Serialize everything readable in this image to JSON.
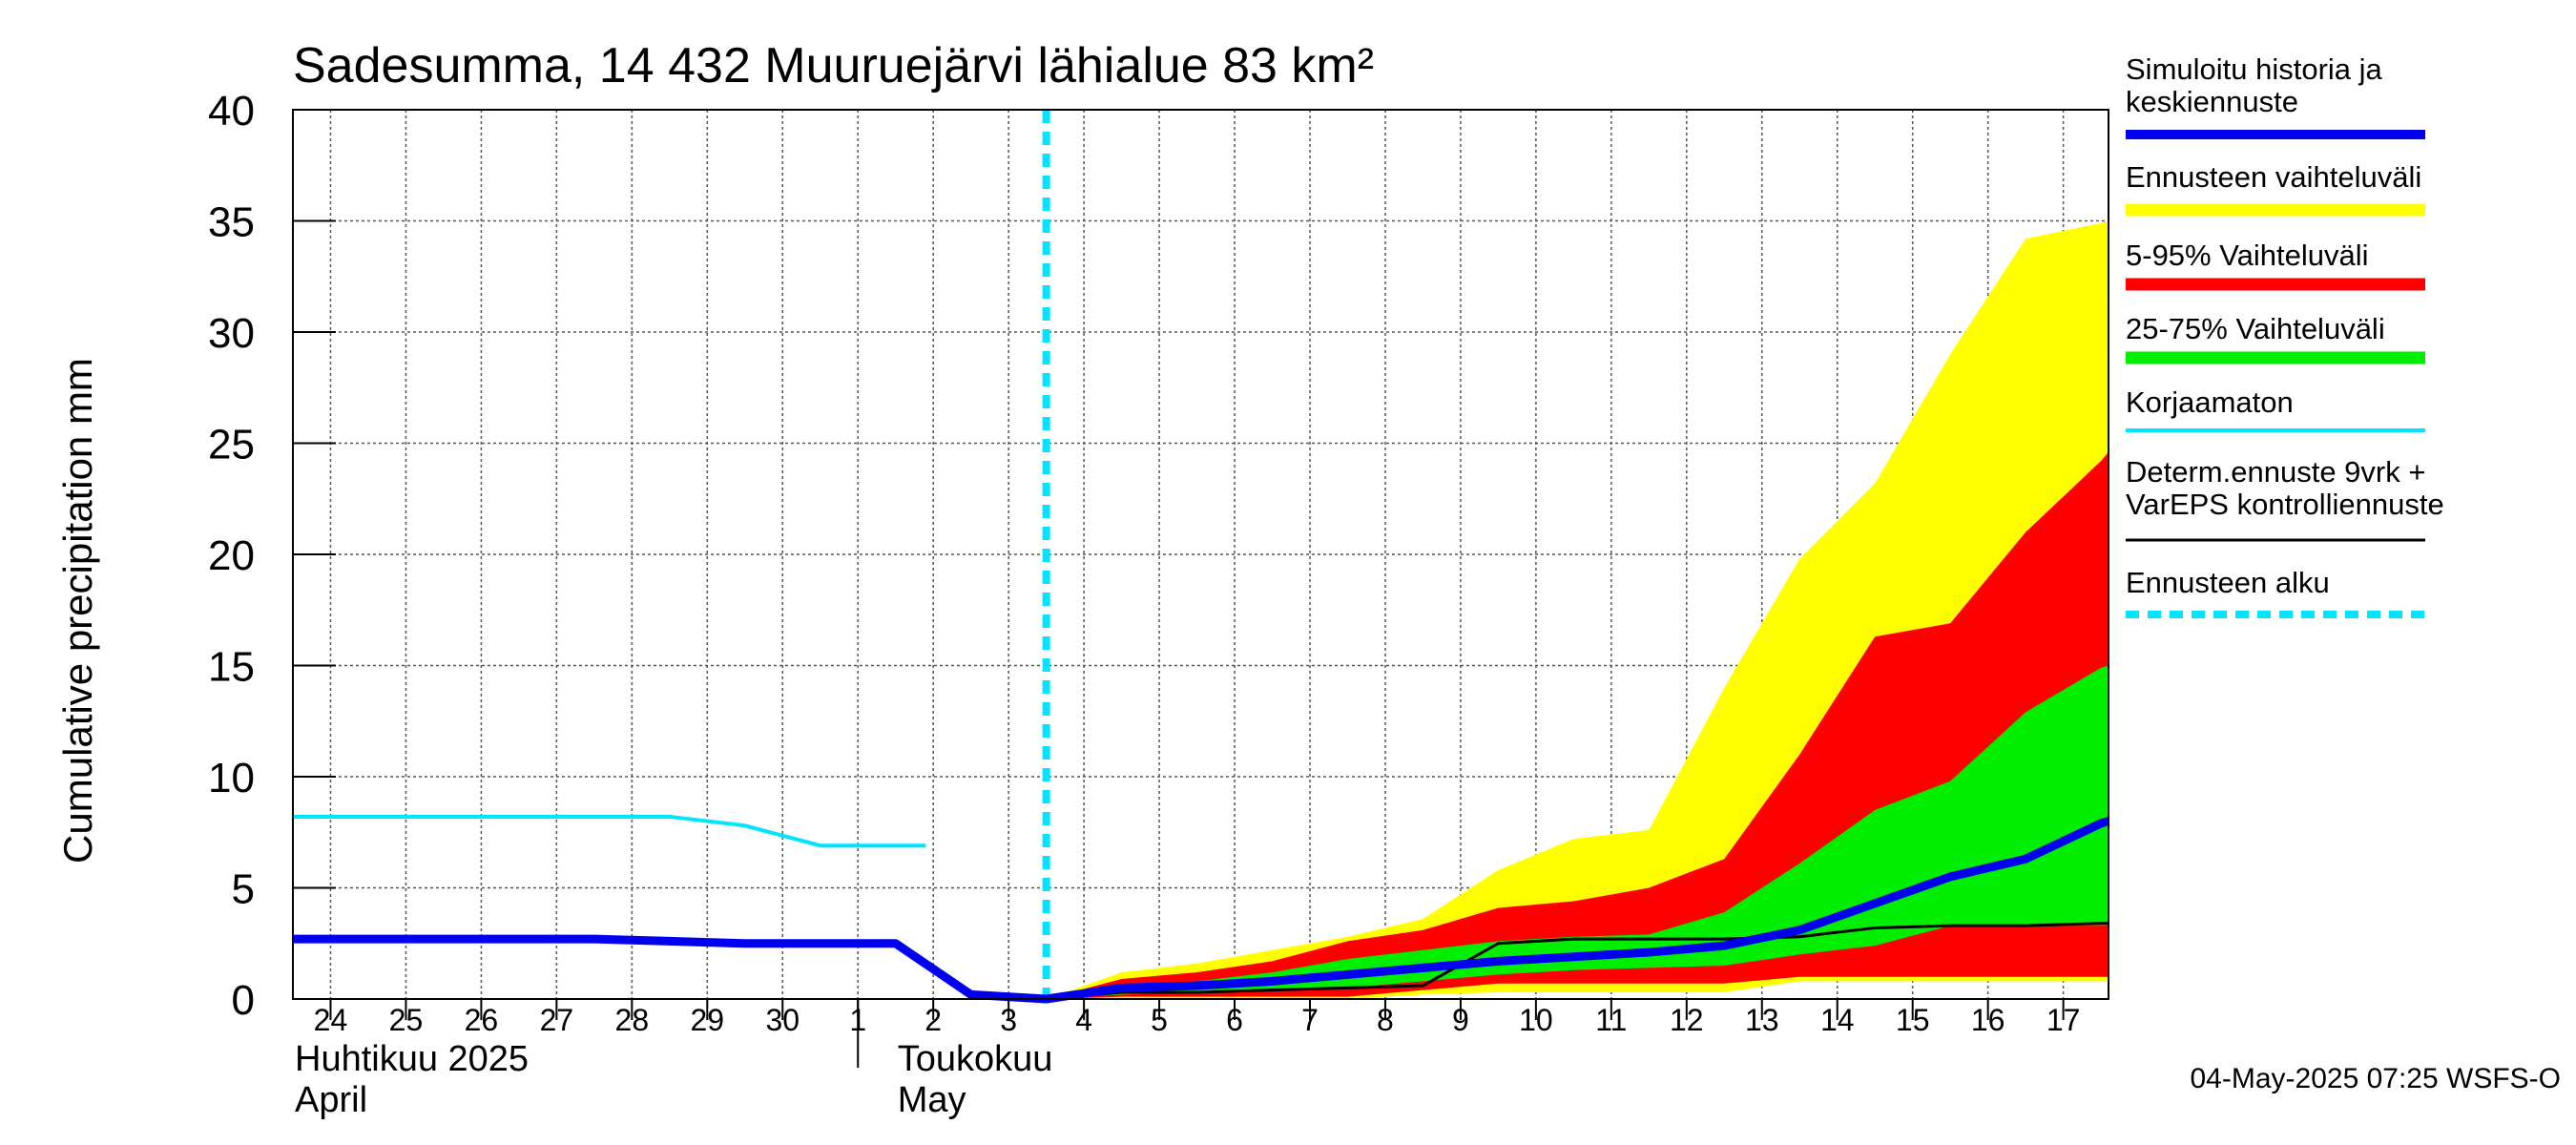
{
  "chart_data": {
    "type": "area",
    "title": "Sadesumma, 14 432 Muuruejärvi lähialue 83 km²",
    "ylabel": "Cumulative precipitation   mm",
    "ylim": [
      0,
      40
    ],
    "yticks": [
      0,
      5,
      10,
      15,
      20,
      25,
      30,
      35,
      40
    ],
    "day_range": [
      -0.5,
      23.6
    ],
    "day_labels": [
      {
        "label": "24",
        "d": 0
      },
      {
        "label": "25",
        "d": 1
      },
      {
        "label": "26",
        "d": 2
      },
      {
        "label": "27",
        "d": 3
      },
      {
        "label": "28",
        "d": 4
      },
      {
        "label": "29",
        "d": 5
      },
      {
        "label": "30",
        "d": 6
      },
      {
        "label": "1",
        "d": 7
      },
      {
        "label": "2",
        "d": 8
      },
      {
        "label": "3",
        "d": 9
      },
      {
        "label": "4",
        "d": 10
      },
      {
        "label": "5",
        "d": 11
      },
      {
        "label": "6",
        "d": 12
      },
      {
        "label": "7",
        "d": 13
      },
      {
        "label": "8",
        "d": 14
      },
      {
        "label": "9",
        "d": 15
      },
      {
        "label": "10",
        "d": 16
      },
      {
        "label": "11",
        "d": 17
      },
      {
        "label": "12",
        "d": 18
      },
      {
        "label": "13",
        "d": 19
      },
      {
        "label": "14",
        "d": 20
      },
      {
        "label": "15",
        "d": 21
      },
      {
        "label": "16",
        "d": 22
      },
      {
        "label": "17",
        "d": 23
      }
    ],
    "month_labels": [
      {
        "line1": "Huhtikuu  2025",
        "line2": "April",
        "d": -0.5
      },
      {
        "line1": "Toukokuu",
        "line2": "May",
        "d": 7.5
      }
    ],
    "month_divider_d": 7.0,
    "forecast_start_d": 9.5,
    "series": [
      {
        "name": "Ennusteen vaihteluväli",
        "kind": "band",
        "color": "#ffff00",
        "x": [
          9.5,
          10.5,
          11.5,
          12.5,
          13.5,
          14.5,
          15.5,
          16.5,
          17.5,
          18.5,
          19.5,
          20.5,
          21.5,
          22.5,
          23.5,
          23.6
        ],
        "upper": [
          0,
          1.2,
          1.6,
          2.2,
          2.8,
          3.6,
          5.8,
          7.2,
          7.6,
          14,
          19.8,
          23.2,
          29,
          34.2,
          34.9,
          35
        ],
        "lower": [
          0,
          0,
          0,
          0,
          0,
          0.2,
          0.3,
          0.3,
          0.3,
          0.3,
          0.8,
          0.8,
          0.8,
          0.8,
          0.8,
          0.8
        ]
      },
      {
        "name": "5-95% Vaihteluväli",
        "kind": "band",
        "color": "#ff0000",
        "x": [
          9.5,
          10.5,
          11.5,
          12.5,
          13.5,
          14.5,
          15.5,
          16.5,
          17.5,
          18.5,
          19.5,
          20.5,
          21.5,
          22.5,
          23.5,
          23.6
        ],
        "upper": [
          0,
          0.9,
          1.2,
          1.7,
          2.6,
          3.1,
          4.1,
          4.4,
          5.0,
          6.3,
          11,
          16.3,
          16.9,
          21,
          24.2,
          24.6
        ],
        "lower": [
          0,
          0.1,
          0.1,
          0.1,
          0.1,
          0.4,
          0.7,
          0.7,
          0.7,
          0.7,
          1.0,
          1.0,
          1.0,
          1.0,
          1.0,
          1.0
        ]
      },
      {
        "name": "25-75% Vaihteluväli",
        "kind": "band",
        "color": "#00ee00",
        "x": [
          9.5,
          10.5,
          11.5,
          12.5,
          13.5,
          14.5,
          15.5,
          16.5,
          17.5,
          18.5,
          19.5,
          20.5,
          21.5,
          22.5,
          23.5,
          23.6
        ],
        "upper": [
          0,
          0.5,
          0.8,
          1.2,
          1.8,
          2.2,
          2.6,
          2.8,
          2.9,
          3.9,
          6.1,
          8.5,
          9.8,
          12.9,
          14.9,
          15
        ],
        "lower": [
          0,
          0.2,
          0.3,
          0.4,
          0.5,
          0.8,
          1.1,
          1.3,
          1.4,
          1.5,
          2.0,
          2.4,
          3.3,
          3.3,
          3.3,
          3.3
        ]
      },
      {
        "name": "Korjaamaton",
        "kind": "line",
        "color": "#00e5ff",
        "width": 4,
        "x": [
          -0.5,
          0.5,
          1.5,
          2.5,
          3.5,
          4.5,
          5.5,
          6.5,
          7.5,
          7.9
        ],
        "y": [
          8.2,
          8.2,
          8.2,
          8.2,
          8.2,
          8.2,
          7.8,
          6.9,
          6.9,
          6.9
        ]
      },
      {
        "name": "Determ.ennuste 9vrk + VarEPS kontrolliennuste",
        "kind": "line",
        "color": "#000000",
        "width": 3,
        "x": [
          9.5,
          10.5,
          11.5,
          12.5,
          13.5,
          14.5,
          15.5,
          16.5,
          17.5,
          18.5,
          19.5,
          20.5,
          21.5,
          22.5,
          23.5,
          23.6
        ],
        "y": [
          0,
          0.3,
          0.3,
          0.4,
          0.5,
          0.6,
          2.5,
          2.7,
          2.7,
          2.7,
          2.8,
          3.2,
          3.3,
          3.3,
          3.4,
          3.4
        ]
      },
      {
        "name": "Simuloitu historia ja keskiennuste",
        "kind": "line",
        "color": "#0000ee",
        "width": 9,
        "x": [
          -0.5,
          0.5,
          1.5,
          2.5,
          3.5,
          4.5,
          5.5,
          6.5,
          7.5,
          8.5,
          9.5,
          10.5,
          11.5,
          12.5,
          13.5,
          14.5,
          15.5,
          16.5,
          17.5,
          18.5,
          19.5,
          20.5,
          21.5,
          22.5,
          23.5,
          23.6
        ],
        "y": [
          2.7,
          2.7,
          2.7,
          2.7,
          2.7,
          2.6,
          2.5,
          2.5,
          2.5,
          0.2,
          0,
          0.5,
          0.6,
          0.8,
          1.1,
          1.4,
          1.7,
          1.9,
          2.1,
          2.4,
          3.1,
          4.3,
          5.5,
          6.3,
          7.9,
          8.0
        ]
      }
    ],
    "legend": [
      {
        "label": "Simuloitu historia ja keskiennuste",
        "color": "#0000ee",
        "style": "thick"
      },
      {
        "label": "Ennusteen vaihteluväli",
        "color": "#ffff00",
        "style": "band"
      },
      {
        "label": "5-95% Vaihteluväli",
        "color": "#ff0000",
        "style": "band"
      },
      {
        "label": "25-75% Vaihteluväli",
        "color": "#00ee00",
        "style": "band"
      },
      {
        "label": "Korjaamaton",
        "color": "#00e5ff",
        "style": "thin"
      },
      {
        "label": "Determ.ennuste 9vrk + VarEPS kontrolliennuste",
        "color": "#000000",
        "style": "line"
      },
      {
        "label": "Ennusteen alku",
        "color": "#00e5ff",
        "style": "dashed"
      }
    ],
    "footer": "04-May-2025 07:25 WSFS-O"
  }
}
